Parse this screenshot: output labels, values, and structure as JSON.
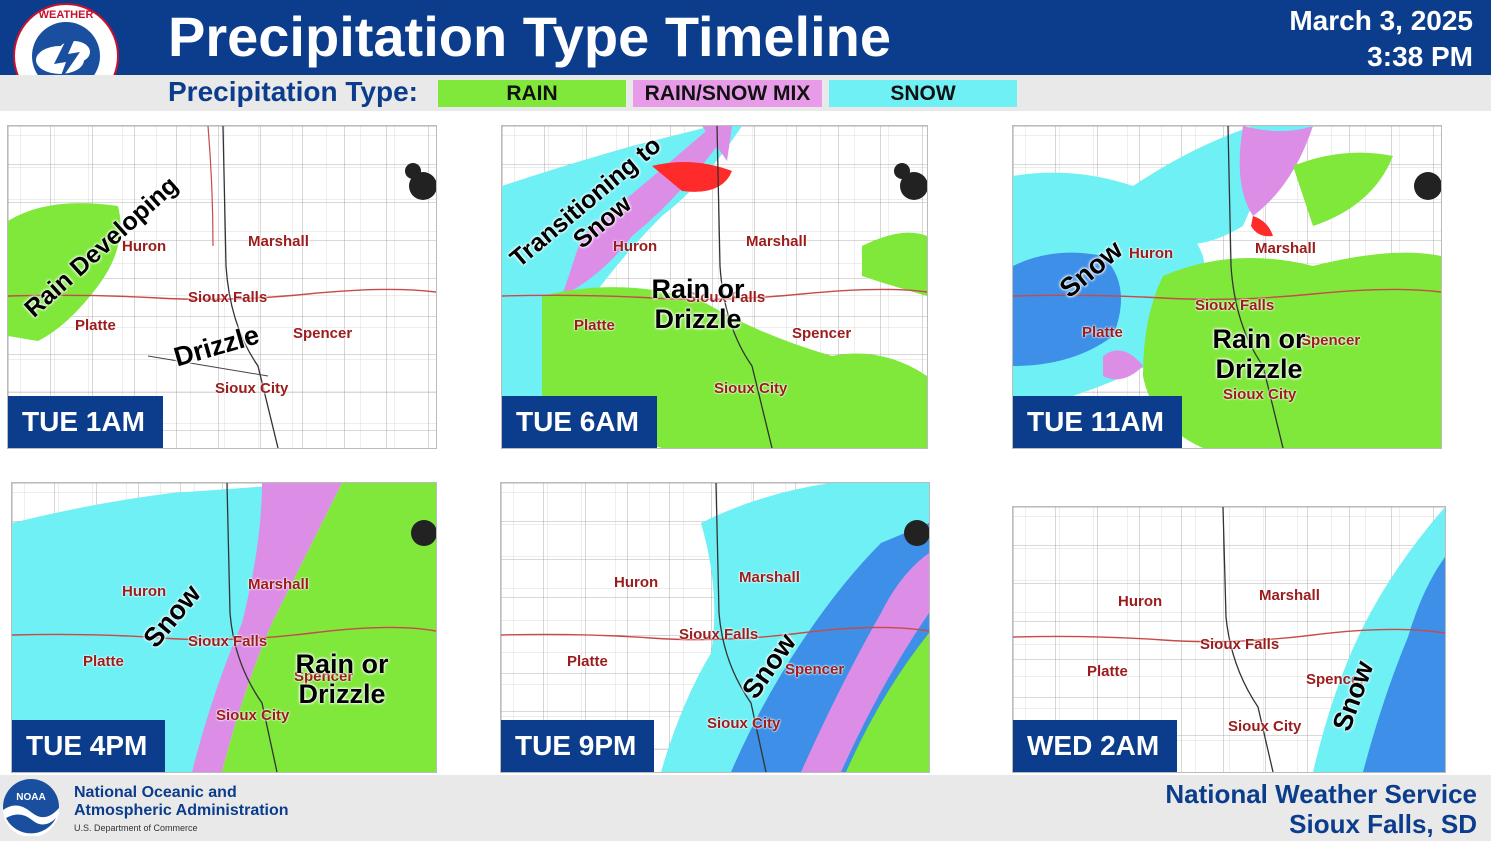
{
  "header": {
    "title": "Precipitation Type Timeline",
    "date": "March 3, 2025",
    "time": "3:38 PM",
    "logo_text": "NATIONAL WEATHER SERVICE",
    "logo_icon": "nws-logo"
  },
  "legend": {
    "label": "Precipitation Type:",
    "items": [
      {
        "label": "RAIN",
        "color": "#7fe83a"
      },
      {
        "label": "RAIN/SNOW MIX",
        "color": "#e79be8"
      },
      {
        "label": "SNOW",
        "color": "#6ff0f5"
      }
    ]
  },
  "colors": {
    "rain": "#7fe83a",
    "mix": "#dc8ee6",
    "snow_light": "#6ff0f5",
    "snow_heavy": "#3d8fe8",
    "freezing": "#ff2a2a",
    "header_blue": "#0b3d8c"
  },
  "cities": {
    "huron": "Huron",
    "marshall": "Marshall",
    "sioux_falls": "Sioux Falls",
    "platte": "Platte",
    "spencer": "Spencer",
    "sioux_city": "Sioux City"
  },
  "panels": [
    {
      "time": "TUE 1AM",
      "annotations": [
        "Rain Developing",
        "Drizzle"
      ]
    },
    {
      "time": "TUE 6AM",
      "annotations": [
        "Transitioning to Snow",
        "Rain or Drizzle"
      ]
    },
    {
      "time": "TUE 11AM",
      "annotations": [
        "Snow",
        "Rain or Drizzle"
      ]
    },
    {
      "time": "TUE 4PM",
      "annotations": [
        "Snow",
        "Rain or Drizzle"
      ]
    },
    {
      "time": "TUE 9PM",
      "annotations": [
        "Snow"
      ]
    },
    {
      "time": "WED 2AM",
      "annotations": [
        "Snow"
      ]
    }
  ],
  "footer": {
    "noaa_line1": "National Oceanic and",
    "noaa_line2": "Atmospheric Administration",
    "noaa_dept": "U.S. Department of Commerce",
    "noaa_logo_text": "NOAA",
    "nws_line1": "National Weather Service",
    "nws_line2": "Sioux Falls, SD"
  }
}
